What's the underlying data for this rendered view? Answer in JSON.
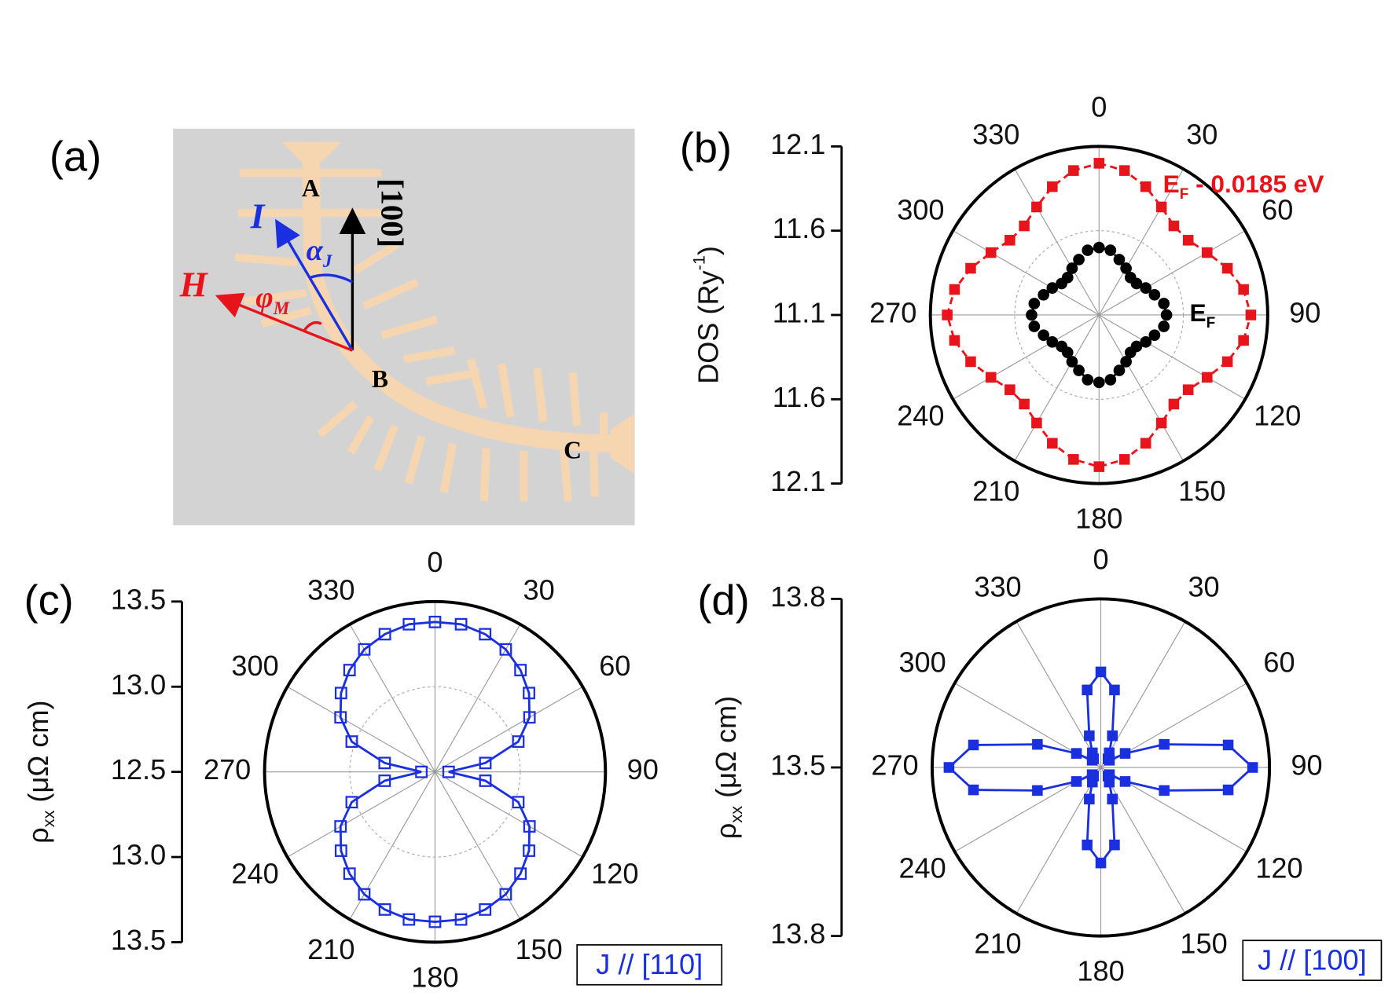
{
  "diagram": {
    "panel_label": "(a)",
    "point_a": "A",
    "point_b": "B",
    "point_c": "C",
    "direction": "[100]",
    "current": "I",
    "field": "H",
    "alpha": {
      "text": "α",
      "sub": "J"
    },
    "phi": {
      "text": "φ",
      "sub": "M"
    }
  },
  "chart_data": [
    {
      "type": "polar",
      "panel_label": "(b)",
      "raxis_title": {
        "text": "DOS (Ry",
        "sup": "-1",
        "after": ")"
      },
      "rlim": [
        11.1,
        12.1
      ],
      "rticks": [
        11.1,
        11.6,
        12.1
      ],
      "thetaticks": [
        0,
        30,
        60,
        90,
        120,
        150,
        180,
        210,
        240,
        270,
        300,
        330
      ],
      "theta": [
        0,
        10,
        20,
        30,
        40,
        50,
        60,
        70,
        80,
        90,
        100,
        110,
        120,
        130,
        140,
        150,
        160,
        170,
        180,
        190,
        200,
        210,
        220,
        230,
        240,
        250,
        260,
        270,
        280,
        290,
        300,
        310,
        320,
        330,
        340,
        350
      ],
      "series": [
        {
          "label": {
            "text": "E",
            "sub": "F",
            "after": " - 0.0185 eV"
          },
          "color": "#e8141b",
          "marker": "square",
          "linestyle": "dashed",
          "values": [
            12.0,
            11.97,
            11.91,
            11.84,
            11.79,
            11.79,
            11.84,
            11.91,
            11.97,
            12.0,
            11.97,
            11.91,
            11.84,
            11.79,
            11.79,
            11.84,
            11.91,
            11.97,
            12.0,
            11.97,
            11.91,
            11.84,
            11.79,
            11.79,
            11.84,
            11.91,
            11.97,
            12.0,
            11.97,
            11.91,
            11.84,
            11.79,
            11.79,
            11.84,
            11.91,
            11.97
          ]
        },
        {
          "label": {
            "text": "E",
            "sub": "F"
          },
          "color": "#000000",
          "marker": "circle",
          "linestyle": "dashdot",
          "values": [
            11.5,
            11.49,
            11.45,
            11.42,
            11.39,
            11.39,
            11.42,
            11.45,
            11.49,
            11.5,
            11.49,
            11.45,
            11.42,
            11.39,
            11.39,
            11.42,
            11.45,
            11.49,
            11.5,
            11.49,
            11.45,
            11.42,
            11.39,
            11.39,
            11.42,
            11.45,
            11.49,
            11.5,
            11.49,
            11.45,
            11.42,
            11.39,
            11.39,
            11.42,
            11.45,
            11.49
          ]
        }
      ]
    },
    {
      "type": "polar",
      "panel_label": "(c)",
      "raxis_title": {
        "text": "ρ",
        "sub": "xx",
        "after": " (μΩ cm)"
      },
      "rlim": [
        12.5,
        13.5
      ],
      "rticks": [
        {
          "value": 12.5,
          "label": "12.5"
        },
        {
          "value": 13,
          "label": "13.0"
        },
        {
          "value": 13.5,
          "label": "13.5"
        }
      ],
      "thetaticks": [
        0,
        30,
        60,
        90,
        120,
        150,
        180,
        210,
        240,
        270,
        300,
        330
      ],
      "theta": [
        0,
        10,
        20,
        30,
        40,
        50,
        60,
        70,
        80,
        90,
        100,
        110,
        120,
        130,
        140,
        150,
        160,
        170,
        180,
        190,
        200,
        210,
        220,
        230,
        240,
        250,
        260,
        270,
        280,
        290,
        300,
        310,
        320,
        330,
        340,
        350
      ],
      "annotation": "J // [110]",
      "series": [
        {
          "color": "#1a2fe0",
          "marker": "square-open",
          "linestyle": "solid",
          "values": [
            13.38,
            13.38,
            13.36,
            13.33,
            13.28,
            13.22,
            13.14,
            13.02,
            12.8,
            12.58,
            12.8,
            13.02,
            13.14,
            13.22,
            13.28,
            13.33,
            13.36,
            13.38,
            13.38,
            13.38,
            13.36,
            13.33,
            13.28,
            13.22,
            13.14,
            13.02,
            12.8,
            12.58,
            12.8,
            13.02,
            13.14,
            13.22,
            13.28,
            13.33,
            13.36,
            13.38
          ]
        }
      ]
    },
    {
      "type": "polar",
      "panel_label": "(d)",
      "raxis_title": {
        "text": "ρ",
        "sub": "xx",
        "after": " (μΩ cm)"
      },
      "rlim": [
        13.5,
        13.8
      ],
      "rticks": [
        13.5,
        13.8
      ],
      "thetaticks": [
        0,
        30,
        60,
        90,
        120,
        150,
        180,
        210,
        240,
        270,
        300,
        330
      ],
      "theta": [
        0,
        10,
        20,
        30,
        40,
        50,
        60,
        70,
        80,
        90,
        100,
        110,
        120,
        130,
        140,
        150,
        160,
        170,
        180,
        190,
        200,
        210,
        220,
        230,
        240,
        250,
        260,
        270,
        280,
        290,
        300,
        310,
        320,
        330,
        340,
        350
      ],
      "annotation": "J // [100]",
      "series": [
        {
          "color": "#1a2fe0",
          "marker": "square",
          "linestyle": "solid",
          "values": [
            13.67,
            13.64,
            13.56,
            13.53,
            13.52,
            13.52,
            13.55,
            13.62,
            13.73,
            13.77,
            13.73,
            13.62,
            13.55,
            13.52,
            13.52,
            13.53,
            13.56,
            13.64,
            13.67,
            13.64,
            13.56,
            13.53,
            13.52,
            13.52,
            13.55,
            13.62,
            13.73,
            13.77,
            13.73,
            13.62,
            13.55,
            13.52,
            13.52,
            13.53,
            13.56,
            13.64
          ]
        }
      ]
    }
  ]
}
